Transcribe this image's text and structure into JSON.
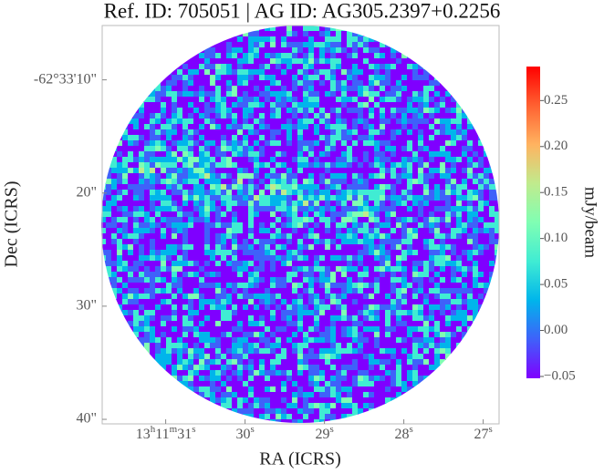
{
  "chart_data": {
    "type": "image",
    "title": "Ref. ID: 705051 | AG ID: AG305.2397+0.2256",
    "x_label": "RA (ICRS)",
    "y_label": "Dec (ICRS)",
    "xlim": [
      31.8,
      26.8
    ],
    "xticks": [
      {
        "value": 31,
        "label": "13h11m31s"
      },
      {
        "value": 30,
        "label": "30s"
      },
      {
        "value": 29,
        "label": "29s"
      },
      {
        "value": 28,
        "label": "28s"
      },
      {
        "value": 27,
        "label": "27s"
      }
    ],
    "ylim": [
      40.4,
      5.2
    ],
    "yticks": [
      {
        "value": 10,
        "label": "-62°33'10\""
      },
      {
        "value": 20,
        "label": "20\""
      },
      {
        "value": 30,
        "label": "30\""
      },
      {
        "value": 40,
        "label": "40\""
      }
    ],
    "colorbar": {
      "label": "mJy/beam",
      "clim": [
        -0.052,
        0.287
      ],
      "ticks": [
        {
          "value": -0.05,
          "label": "−0.05"
        },
        {
          "value": 0,
          "label": "0.00"
        },
        0.05,
        {
          "value": 0.1,
          "label": "0.10"
        },
        0.15,
        {
          "value": 0.2,
          "label": "0.20"
        },
        0.25
      ],
      "colormap": [
        "#7f00ff",
        "#3f61fa",
        "#00b5eb",
        "#40ecd3",
        "#80feb3",
        "#c0eb8d",
        "#ffb360",
        "#ff6131",
        "#ff0000"
      ]
    }
  }
}
